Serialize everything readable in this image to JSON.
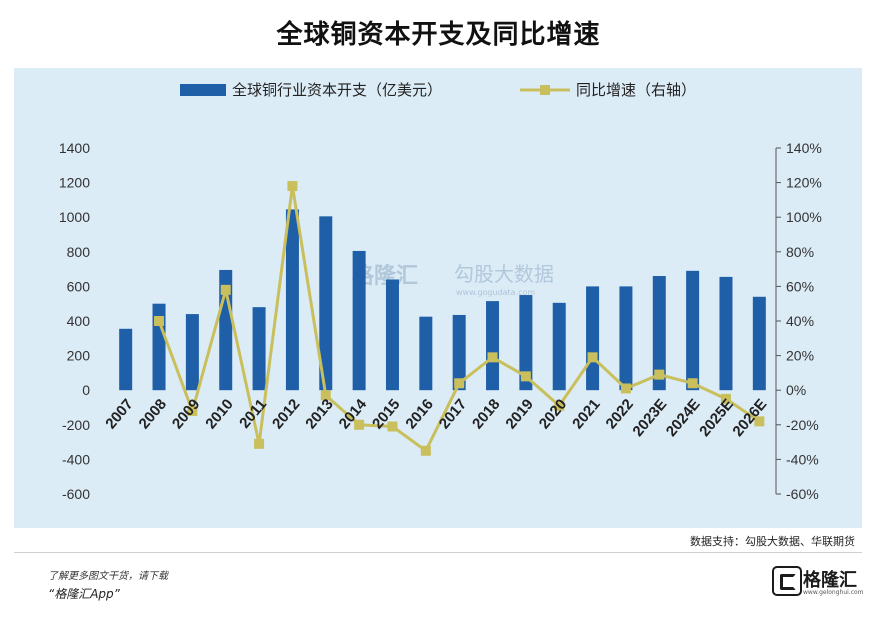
{
  "title": "全球铜资本开支及同比增速",
  "source": "数据支持：勾股大数据、华联期货",
  "footer": {
    "note": "了解更多图文干货，请下载",
    "app": "“格隆汇App”",
    "logo": "格隆汇",
    "logo_url": "www.gelonghui.com"
  },
  "watermark": {
    "logo": "格隆汇",
    "text": "勾股大数据",
    "url": "www.gogudata.com"
  },
  "colors": {
    "bar": "#1f5fa8",
    "line": "#c9bf5c",
    "panel": "#dcecf7",
    "grid": "#ffffff"
  },
  "chart_data": {
    "type": "bar",
    "categories": [
      "2007",
      "2008",
      "2009",
      "2010",
      "2011",
      "2012",
      "2013",
      "2014",
      "2015",
      "2016",
      "2017",
      "2018",
      "2019",
      "2020",
      "2021",
      "2022",
      "2023E",
      "2024E",
      "2025E",
      "2026E"
    ],
    "series": [
      {
        "name": "全球铜行业资本开支（亿美元）",
        "type": "bar",
        "axis": "left",
        "values": [
          355,
          500,
          440,
          695,
          480,
          1045,
          1005,
          805,
          640,
          425,
          435,
          515,
          550,
          505,
          600,
          600,
          660,
          690,
          655,
          540
        ]
      },
      {
        "name": "同比增速（右轴）",
        "type": "line",
        "axis": "right",
        "values": [
          null,
          40,
          -12,
          58,
          -31,
          118,
          -3,
          -20,
          -21,
          -35,
          4,
          19,
          8,
          -9,
          19,
          1,
          9,
          4,
          -5,
          -18
        ]
      }
    ],
    "y_left": {
      "ylim": [
        -600,
        1400
      ],
      "ticks": [
        -600,
        -400,
        -200,
        0,
        200,
        400,
        600,
        800,
        1000,
        1200,
        1400
      ]
    },
    "y_right": {
      "ylim": [
        -60,
        140
      ],
      "ticks": [
        "-60%",
        "-40%",
        "-20%",
        "0%",
        "20%",
        "40%",
        "60%",
        "80%",
        "100%",
        "120%",
        "140%"
      ]
    },
    "legend_position": "top",
    "grid": false
  }
}
